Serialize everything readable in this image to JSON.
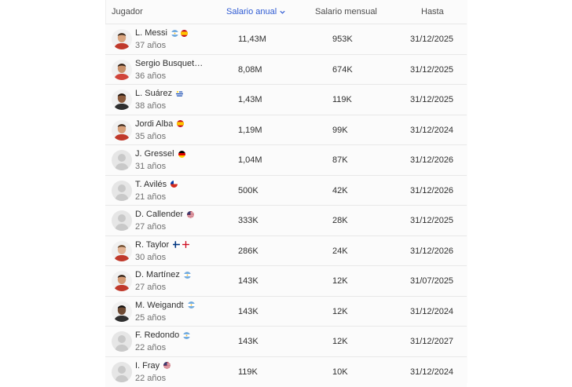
{
  "table": {
    "headers": {
      "player": "Jugador",
      "annual": "Salario anual",
      "monthly": "Salario mensual",
      "until": "Hasta"
    },
    "rows": [
      {
        "name": "L. Messi",
        "age": "37 años",
        "annual": "11,43M",
        "monthly": "953K",
        "until": "31/12/2025",
        "flags": [
          "argentina-flag",
          "spain-flag"
        ],
        "avatar": "player-photo"
      },
      {
        "name": "Sergio Busquets",
        "age": "36 años",
        "annual": "8,08M",
        "monthly": "674K",
        "until": "31/12/2025",
        "flags": [],
        "avatar": "player-photo"
      },
      {
        "name": "L. Suárez",
        "age": "38 años",
        "annual": "1,43M",
        "monthly": "119K",
        "until": "31/12/2025",
        "flags": [
          "uruguay-flag"
        ],
        "avatar": "player-photo"
      },
      {
        "name": "Jordi Alba",
        "age": "35 años",
        "annual": "1,19M",
        "monthly": "99K",
        "until": "31/12/2024",
        "flags": [
          "spain-flag"
        ],
        "avatar": "player-photo"
      },
      {
        "name": "J. Gressel",
        "age": "31 años",
        "annual": "1,04M",
        "monthly": "87K",
        "until": "31/12/2026",
        "flags": [
          "germany-flag"
        ],
        "avatar": "placeholder-avatar"
      },
      {
        "name": "T. Avilés",
        "age": "21 años",
        "annual": "500K",
        "monthly": "42K",
        "until": "31/12/2026",
        "flags": [
          "chile-flag"
        ],
        "avatar": "placeholder-avatar"
      },
      {
        "name": "D. Callender",
        "age": "27 años",
        "annual": "333K",
        "monthly": "28K",
        "until": "31/12/2025",
        "flags": [
          "usa-flag"
        ],
        "avatar": "placeholder-avatar"
      },
      {
        "name": "R. Taylor",
        "age": "30 años",
        "annual": "286K",
        "monthly": "24K",
        "until": "31/12/2026",
        "flags": [
          "finland-flag",
          "england-flag"
        ],
        "avatar": "player-photo"
      },
      {
        "name": "D. Martínez",
        "age": "27 años",
        "annual": "143K",
        "monthly": "12K",
        "until": "31/07/2025",
        "flags": [
          "argentina-flag"
        ],
        "avatar": "player-photo"
      },
      {
        "name": "M. Weigandt",
        "age": "25 años",
        "annual": "143K",
        "monthly": "12K",
        "until": "31/12/2024",
        "flags": [
          "argentina-flag"
        ],
        "avatar": "player-photo"
      },
      {
        "name": "F. Redondo",
        "age": "22 años",
        "annual": "143K",
        "monthly": "12K",
        "until": "31/12/2027",
        "flags": [
          "argentina-flag"
        ],
        "avatar": "placeholder-avatar"
      },
      {
        "name": "I. Fray",
        "age": "22 años",
        "annual": "119K",
        "monthly": "10K",
        "until": "31/12/2024",
        "flags": [
          "usa-flag"
        ],
        "avatar": "placeholder-avatar"
      }
    ]
  },
  "colors": {
    "accent": "#2f5bd3",
    "row_bg": "#fbfbfb",
    "divider": "#e8e8e8"
  }
}
